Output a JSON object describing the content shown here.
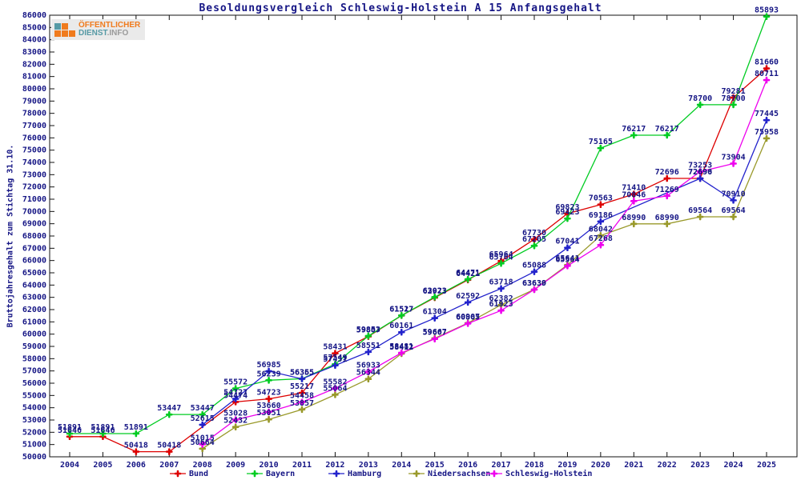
{
  "page_title": "Besoldungsvergleich Schleswig-Holstein A 15 Anfangsgehalt",
  "logo": {
    "line1": "ÖFFENTLICHER",
    "line2_strong": "DIENST",
    "line2_rest": ".INFO",
    "orange": "#f07b1d",
    "teal": "#569aa5",
    "gray": "#9a9a9a",
    "bg": "#eaeaea"
  },
  "chart_data": {
    "type": "line",
    "title": "Besoldungsvergleich Schleswig-Holstein A 15 Anfangsgehalt",
    "ylabel": "Bruttojahresgehalt zum Stichtag 31.10.",
    "xlabel": "",
    "ylim": [
      50000,
      86000
    ],
    "ytick_step": 1000,
    "grid": false,
    "legend_position": "bottom",
    "point_labels": true,
    "label_color": "#161685",
    "axis_color": "#111111",
    "x": [
      2004,
      2005,
      2006,
      2007,
      2008,
      2009,
      2010,
      2011,
      2012,
      2013,
      2014,
      2015,
      2016,
      2017,
      2018,
      2019,
      2020,
      2021,
      2022,
      2023,
      2024,
      2025
    ],
    "series": [
      {
        "name": "Bund",
        "color": "#dd0000",
        "values": [
          51646,
          51646,
          50418,
          50418,
          null,
          54474,
          54723,
          55217,
          58431,
          59807,
          61517,
          62973,
          64421,
          65964,
          67730,
          69823,
          70563,
          71410,
          72696,
          72696,
          79281,
          81660
        ]
      },
      {
        "name": "Bayern",
        "color": "#00cc22",
        "values": [
          51891,
          51891,
          51891,
          53447,
          53447,
          55572,
          56239,
          56365,
          57549,
          59853,
          61527,
          63023,
          64471,
          65764,
          67205,
          69423,
          75165,
          76217,
          76217,
          78700,
          78700,
          85893
        ]
      },
      {
        "name": "Hamburg",
        "color": "#2222cc",
        "values": [
          null,
          null,
          null,
          null,
          52615,
          54727,
          56985,
          56355,
          57451,
          58551,
          60161,
          61304,
          62592,
          63718,
          65088,
          67041,
          69186,
          null,
          null,
          72690,
          70910,
          77445
        ]
      },
      {
        "name": "Niedersachsen",
        "color": "#99992a",
        "values": [
          null,
          null,
          null,
          null,
          50664,
          52432,
          53051,
          53857,
          55064,
          56344,
          58412,
          59667,
          60907,
          62382,
          63639,
          65641,
          68042,
          68990,
          68990,
          69564,
          69564,
          75958
        ]
      },
      {
        "name": "Schleswig-Holstein",
        "color": "#ee00ee",
        "values": [
          null,
          null,
          null,
          null,
          51015,
          53028,
          53660,
          54458,
          55582,
          56933,
          58481,
          59607,
          60865,
          61923,
          63630,
          65564,
          67268,
          70846,
          71269,
          73253,
          73904,
          80711
        ]
      }
    ]
  }
}
